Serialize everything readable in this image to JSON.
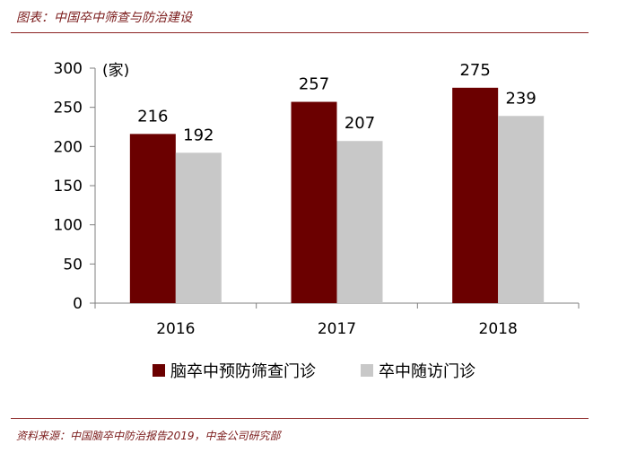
{
  "caption": "图表：中国卒中筛查与防治建设",
  "source": "资料来源：中国脑卒中防治报告2019，中金公司研究部",
  "colors": {
    "series1": "#6b0000",
    "series2": "#c8c8c8",
    "axis": "#7f7f7f",
    "accent": "#8b2323"
  },
  "chart_data": {
    "type": "bar",
    "title": "",
    "xlabel": "",
    "ylabel": "(家)",
    "categories": [
      "2016",
      "2017",
      "2018"
    ],
    "series": [
      {
        "name": "脑卒中预防筛查门诊",
        "values": [
          216,
          257,
          275
        ]
      },
      {
        "name": "卒中随访门诊",
        "values": [
          192,
          207,
          239
        ]
      }
    ],
    "ylim": [
      0,
      300
    ],
    "yticks": [
      0,
      50,
      100,
      150,
      200,
      250,
      300
    ],
    "grid": false,
    "legend_position": "bottom"
  }
}
